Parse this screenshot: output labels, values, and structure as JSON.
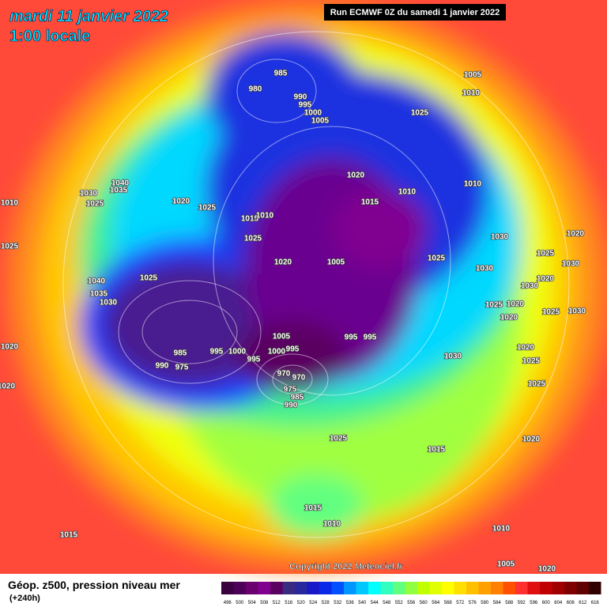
{
  "header": {
    "date": "mardi 11 janvier 2022",
    "time": "1:00 locale",
    "run": "Run ECMWF 0Z du samedi 1 janvier 2022"
  },
  "copyright": "Copyright 2022 Meteociel.fr",
  "footer": {
    "title": "Géop. z500, pression niveau mer",
    "lead": "(+240h)"
  },
  "legend": {
    "labels": [
      496,
      500,
      504,
      508,
      512,
      516,
      520,
      524,
      528,
      532,
      536,
      540,
      544,
      548,
      552,
      556,
      560,
      564,
      568,
      572,
      576,
      580,
      584,
      588,
      592,
      596,
      600,
      604,
      608,
      612,
      616
    ],
    "colors": [
      "#3a0040",
      "#4c0058",
      "#6a006e",
      "#800090",
      "#5a0060",
      "#3a2a80",
      "#28289c",
      "#1818c8",
      "#0a28e8",
      "#0050ff",
      "#0096ff",
      "#00c8ff",
      "#00ffff",
      "#30ffc0",
      "#60ff80",
      "#90ff40",
      "#c0ff00",
      "#e0ff00",
      "#ffff00",
      "#ffe000",
      "#ffc000",
      "#ffa000",
      "#ff8000",
      "#ff5000",
      "#ff3030",
      "#e01010",
      "#c00000",
      "#a00000",
      "#800000",
      "#600000",
      "#300000"
    ]
  },
  "pressure_labels": [
    "985",
    "980",
    "990",
    "995",
    "1000",
    "1005",
    "1005",
    "1010",
    "1025",
    "1020",
    "1010",
    "1010",
    "1015",
    "1030",
    "1035",
    "1040",
    "1025",
    "1020",
    "1025",
    "1015",
    "1010",
    "1025",
    "1020",
    "1005",
    "1030",
    "1020",
    "1025",
    "1030",
    "1025",
    "1030",
    "1040",
    "1035",
    "1030",
    "1025",
    "1020",
    "1030",
    "1025",
    "1020",
    "1020",
    "1025",
    "1030",
    "1005",
    "995",
    "995",
    "1000",
    "1000",
    "995",
    "985",
    "995",
    "995",
    "990",
    "975",
    "970",
    "970",
    "975",
    "985",
    "990",
    "1030",
    "1020",
    "1025",
    "1025",
    "1020",
    "1025",
    "1015",
    "1015",
    "1010",
    "1010",
    "1015",
    "1020",
    "1020",
    "1025",
    "1010",
    "1005",
    "1020"
  ]
}
